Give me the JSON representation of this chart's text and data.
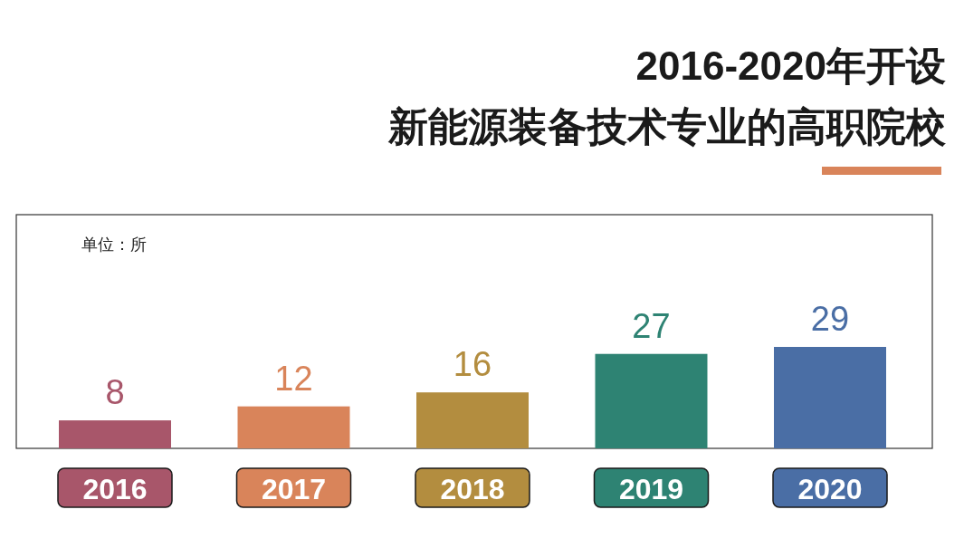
{
  "chart_data": {
    "type": "bar",
    "title": "2016-2020年开设",
    "subtitle": "新能源装备技术专业的高职院校",
    "annotations": [
      "单位：所"
    ],
    "categories": [
      "2016",
      "2017",
      "2018",
      "2019",
      "2020"
    ],
    "values": [
      8,
      12,
      16,
      27,
      29
    ],
    "colors": [
      "#a8566a",
      "#d9845a",
      "#b38d3f",
      "#2e8373",
      "#4a6ea5"
    ],
    "data_labels": true
  }
}
